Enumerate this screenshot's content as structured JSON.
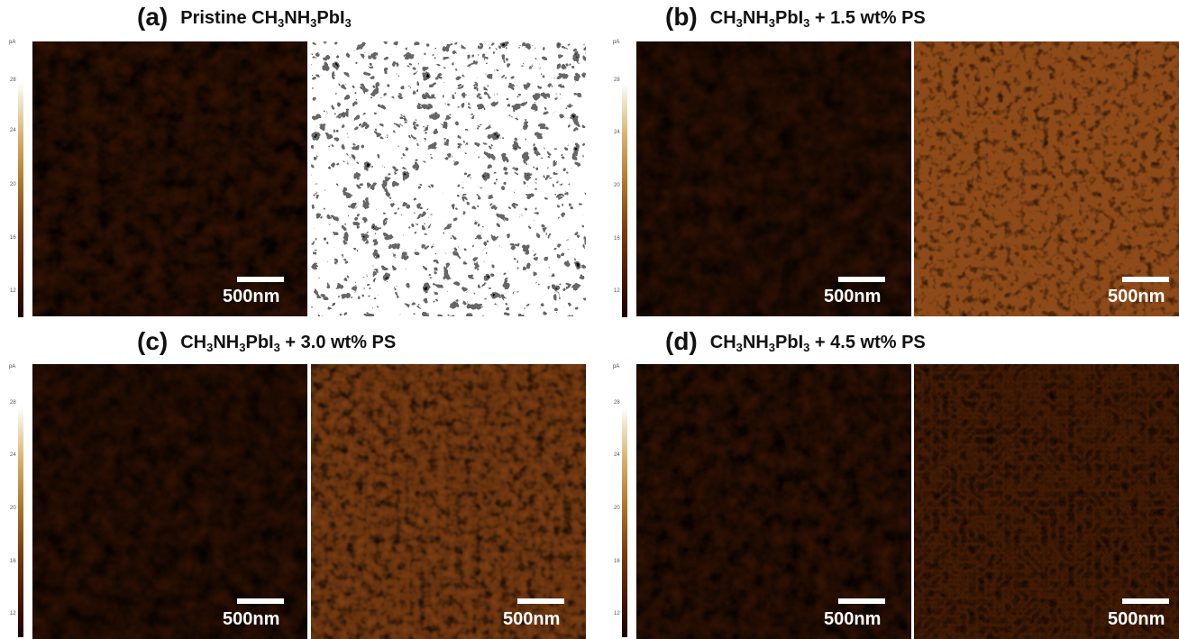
{
  "panels": [
    {
      "label": "(a)",
      "t1": "Pristine CH",
      "s1": "3",
      "t2": "NH",
      "s2": "3",
      "t3": "PbI",
      "s3": "3",
      "t4": ""
    },
    {
      "label": "(b)",
      "t1": "CH",
      "s1": "3",
      "t2": "NH",
      "s2": "3",
      "t3": "PbI",
      "s3": "3",
      "t4": " + 1.5 wt% PS"
    },
    {
      "label": "(c)",
      "t1": "CH",
      "s1": "3",
      "t2": "NH",
      "s2": "3",
      "t3": "PbI",
      "s3": "3",
      "t4": " + 3.0 wt% PS"
    },
    {
      "label": "(d)",
      "t1": "CH",
      "s1": "3",
      "t2": "NH",
      "s2": "3",
      "t3": "PbI",
      "s3": "3",
      "t4": " + 4.5 wt% PS"
    }
  ],
  "colorbar": {
    "unit": "pA",
    "ticks": [
      "28",
      "24",
      "20",
      "16",
      "12"
    ]
  },
  "scale_label": "500nm",
  "colors": {
    "dark": "#1a0000",
    "mid": "#8b4a14",
    "light": "#f6e2b0"
  }
}
